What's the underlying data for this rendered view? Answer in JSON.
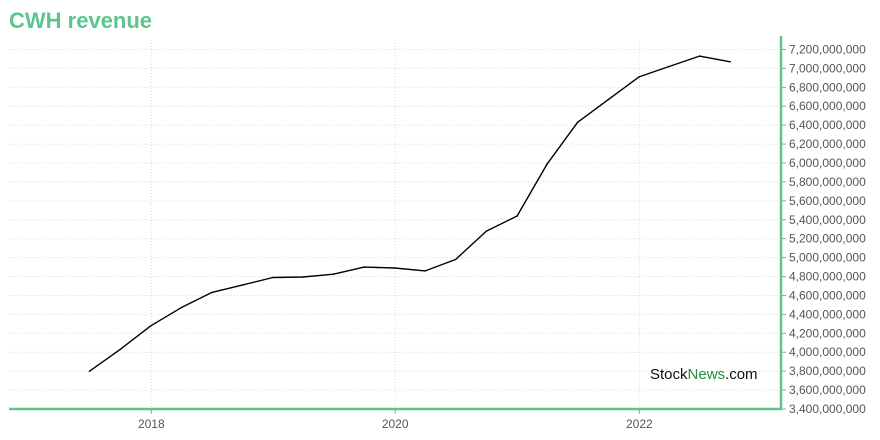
{
  "colors": {
    "title": "#5cc58e",
    "axis": "#5cc58e",
    "line": "#000000",
    "grid": "#c8e6d6",
    "watermark_green": "#1f8f3e"
  },
  "watermark": {
    "part1": "Stock",
    "part2": "News",
    "part3": ".com"
  },
  "chart_data": {
    "type": "line",
    "title": "CWH revenue",
    "xlabel": "",
    "ylabel": "",
    "x_ticks": [
      "2018",
      "2020",
      "2022"
    ],
    "y_ticks": [
      3400000000,
      3600000000,
      3800000000,
      4000000000,
      4200000000,
      4400000000,
      4600000000,
      4800000000,
      5000000000,
      5200000000,
      5400000000,
      5600000000,
      5800000000,
      6000000000,
      6200000000,
      6400000000,
      6600000000,
      6800000000,
      7000000000,
      7200000000
    ],
    "y_tick_labels": [
      "3,400,000,000",
      "3,600,000,000",
      "3,800,000,000",
      "4,000,000,000",
      "4,200,000,000",
      "4,400,000,000",
      "4,600,000,000",
      "4,800,000,000",
      "5,000,000,000",
      "5,200,000,000",
      "5,400,000,000",
      "5,600,000,000",
      "5,800,000,000",
      "6,000,000,000",
      "6,200,000,000",
      "6,400,000,000",
      "6,600,000,000",
      "6,800,000,000",
      "7,000,000,000",
      "7,200,000,000"
    ],
    "ylim": [
      3400000000,
      7300000000
    ],
    "xlim": [
      "2016-11-01",
      "2023-03-01"
    ],
    "grid": true,
    "y_axis_side": "right",
    "series": [
      {
        "x": [
          "2017-06-30",
          "2017-09-30",
          "2017-12-31",
          "2018-03-31",
          "2018-06-30",
          "2018-09-30",
          "2018-12-31",
          "2019-03-31",
          "2019-06-30",
          "2019-09-30",
          "2019-12-31",
          "2020-03-31",
          "2020-06-30",
          "2020-09-30",
          "2020-12-31",
          "2021-03-31",
          "2021-06-30",
          "2021-09-30",
          "2021-12-31",
          "2022-03-31",
          "2022-06-30",
          "2022-09-30"
        ],
        "y": [
          3800000000,
          4030000000,
          4280000000,
          4470000000,
          4630000000,
          4710000000,
          4790000000,
          4795000000,
          4825000000,
          4900000000,
          4890000000,
          4860000000,
          4980000000,
          5280000000,
          5440000000,
          5990000000,
          6430000000,
          6670000000,
          6910000000,
          7020000000,
          7130000000,
          7070000000
        ]
      }
    ]
  }
}
